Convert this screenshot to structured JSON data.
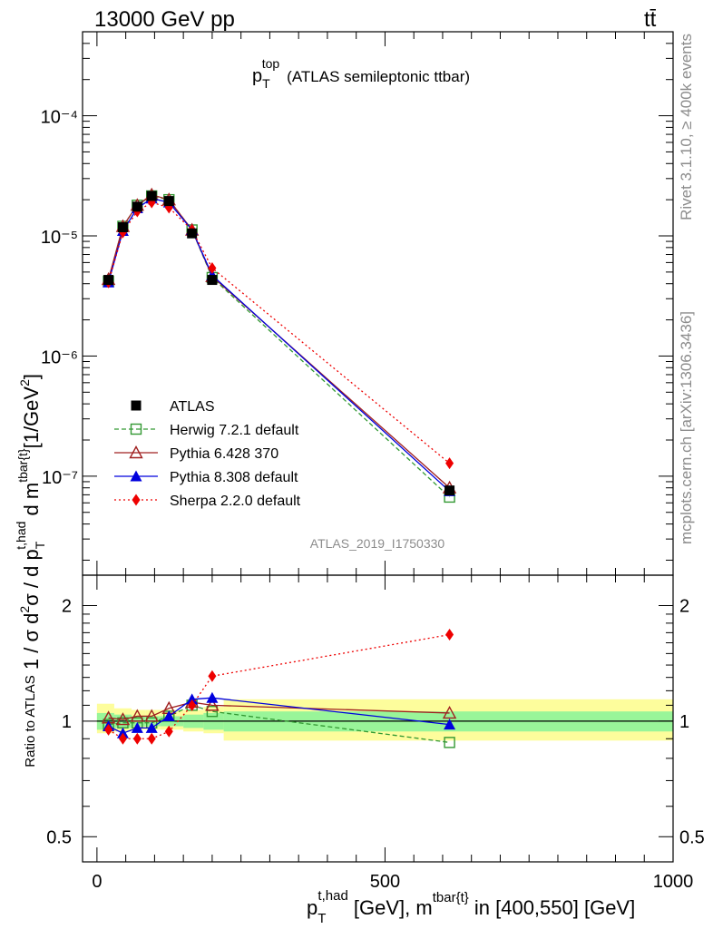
{
  "header": {
    "energy_label": "13000 GeV pp",
    "process_label": "tt̄",
    "rivet_label": "Rivet 3.1.10, ≥ 400k events",
    "mcplots_label": "mcplots.cern.ch [arXiv:1306.3436]",
    "analysis_id": "ATLAS_2019_I1750330"
  },
  "colors": {
    "data": "#000000",
    "herwig": "#339933",
    "pythia6": "#a02020",
    "pythia8": "#0000dd",
    "sherpa": "#ee0000",
    "band_inner": "#99f599",
    "band_outer": "#fdfd9c"
  },
  "chart_data": [
    {
      "type": "line",
      "name": "main",
      "title": "p_T^top (ATLAS semileptonic ttbar)",
      "title_parts": {
        "base": "p",
        "sub": "T",
        "sup": "top",
        "rest": "(ATLAS semileptonic ttbar)"
      },
      "ylabel": "1 / σ d²σ / d p_T^{t,had} d m^{tbar{t}} [1/GeV²]",
      "ylabel_parts": {
        "a": "1 / σ d",
        "sup2a": "2",
        "b": "σ / d p",
        "subT": "T",
        "suphad": "t,had",
        "c": " d m",
        "supm": "tbar{t}",
        "d": "[1/GeV",
        "sup2b": "2",
        "e": "]"
      },
      "yscale": "log",
      "ylim": [
        1.5e-08,
        0.0005
      ],
      "xlim": [
        -25,
        1000
      ],
      "ytick_labels": [
        "10⁻⁷",
        "10⁻⁶",
        "10⁻⁵",
        "10⁻⁴"
      ],
      "ytick_values": [
        1e-07,
        1e-06,
        1e-05,
        0.0001
      ],
      "x": [
        20,
        45,
        70,
        95,
        125,
        165,
        200,
        612
      ],
      "bin_edges": [
        0,
        30,
        60,
        85,
        110,
        150,
        185,
        220,
        1000
      ],
      "series": [
        {
          "name": "ATLAS",
          "key": "data",
          "marker": "square-filled",
          "line": "none",
          "values": [
            4.3e-06,
            1.18e-05,
            1.75e-05,
            2.15e-05,
            1.95e-05,
            1.05e-05,
            4.3e-06,
            7.6e-08
          ]
        },
        {
          "name": "Herwig 7.2.1 default",
          "key": "herwig",
          "marker": "square-open",
          "line": "dashed",
          "values": [
            4.2e-06,
            1.2e-05,
            1.8e-05,
            2.15e-05,
            2e-05,
            1.12e-05,
            4.5e-06,
            6.7e-08
          ]
        },
        {
          "name": "Pythia 6.428 370",
          "key": "pythia6",
          "marker": "triangle-open",
          "line": "solid",
          "values": [
            4.35e-06,
            1.2e-05,
            1.8e-05,
            2.2e-05,
            2e-05,
            1.12e-05,
            4.6e-06,
            8e-08
          ]
        },
        {
          "name": "Pythia 8.308 default",
          "key": "pythia8",
          "marker": "triangle-filled",
          "line": "solid",
          "values": [
            4.1e-06,
            1.1e-05,
            1.7e-05,
            2.05e-05,
            1.9e-05,
            1.12e-05,
            4.7e-06,
            7.5e-08
          ]
        },
        {
          "name": "Sherpa 2.2.0 default",
          "key": "sherpa",
          "marker": "diamond-filled",
          "line": "dotted",
          "values": [
            4.1e-06,
            1.07e-05,
            1.6e-05,
            1.9e-05,
            1.72e-05,
            1.12e-05,
            5.4e-06,
            1.28e-07
          ]
        }
      ],
      "legend_position": "bottom-left"
    },
    {
      "type": "line",
      "name": "ratio",
      "ylabel": "Ratio to ATLAS",
      "yscale": "log",
      "ylim": [
        0.43,
        2.4
      ],
      "ytick_labels": [
        "0.5",
        "1",
        "2"
      ],
      "ytick_values": [
        0.5,
        1,
        2
      ],
      "xlabel": "p_T^{t,had} [GeV], m^{tbar{t}} in [400,550] [GeV]",
      "xlabel_parts": {
        "base": "p",
        "subT": "T",
        "suphad": "t,had",
        "a": " [GeV], m",
        "supm": "tbar{t}",
        "b": " in [400,550] [GeV]"
      },
      "xtick_labels": [
        "0",
        "500",
        "1000"
      ],
      "xtick_values": [
        0,
        500,
        1000
      ],
      "band_inner": [
        [
          0.95,
          1.05
        ],
        [
          0.96,
          1.04
        ],
        [
          0.97,
          1.03
        ],
        [
          0.97,
          1.03
        ],
        [
          0.97,
          1.03
        ],
        [
          0.96,
          1.04
        ],
        [
          0.95,
          1.05
        ],
        [
          0.94,
          1.06
        ]
      ],
      "band_outer": [
        [
          0.93,
          1.11
        ],
        [
          0.94,
          1.08
        ],
        [
          0.95,
          1.07
        ],
        [
          0.95,
          1.07
        ],
        [
          0.95,
          1.07
        ],
        [
          0.94,
          1.07
        ],
        [
          0.93,
          1.09
        ],
        [
          0.89,
          1.14
        ]
      ],
      "series": [
        {
          "name": "Herwig 7.2.1 default",
          "key": "herwig",
          "values": [
            0.98,
            0.99,
            0.99,
            0.99,
            1.03,
            1.1,
            1.06,
            0.88
          ]
        },
        {
          "name": "Pythia 6.428 370",
          "key": "pythia6",
          "values": [
            1.02,
            1.01,
            1.03,
            1.03,
            1.08,
            1.12,
            1.1,
            1.05
          ]
        },
        {
          "name": "Pythia 8.308 default",
          "key": "pythia8",
          "values": [
            0.97,
            0.93,
            0.96,
            0.96,
            1.03,
            1.14,
            1.15,
            0.98
          ]
        },
        {
          "name": "Sherpa 2.2.0 default",
          "key": "sherpa",
          "values": [
            0.95,
            0.9,
            0.9,
            0.9,
            0.94,
            1.1,
            1.31,
            1.68
          ]
        }
      ]
    }
  ]
}
